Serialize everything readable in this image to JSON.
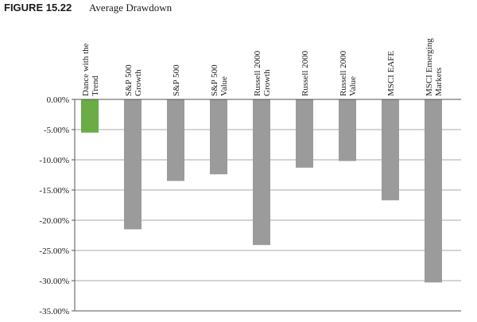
{
  "figure": {
    "number": "FIGURE 15.22",
    "title": "Average Drawdown"
  },
  "chart_data": {
    "type": "bar",
    "title": "Average Drawdown",
    "xlabel": "",
    "ylabel": "",
    "ylim": [
      -35,
      0
    ],
    "y_ticks": [
      0,
      -5,
      -10,
      -15,
      -20,
      -25,
      -30,
      -35
    ],
    "y_tick_labels": [
      "0.00%",
      "-5.00%",
      "-10.00%",
      "-15.00%",
      "-20.00%",
      "-25.00%",
      "-30.00%",
      "-35.00%"
    ],
    "grid": true,
    "categories": [
      [
        "Dance with the",
        "Trend"
      ],
      [
        "S&P 500",
        "Growth"
      ],
      [
        "S&P 500"
      ],
      [
        "S&P 500",
        "Value"
      ],
      [
        "Russell 2000",
        "Growth"
      ],
      [
        "Russell 2000"
      ],
      [
        "Russell 2000",
        "Value"
      ],
      [
        "MSCI EAFE"
      ],
      [
        "MSCI Emerging",
        "Markets"
      ]
    ],
    "values": [
      -5.5,
      -21.5,
      -13.5,
      -12.4,
      -24.1,
      -11.3,
      -10.2,
      -16.7,
      -30.3
    ],
    "colors": [
      "#6aac45",
      "#9b9b9b",
      "#9b9b9b",
      "#9b9b9b",
      "#9b9b9b",
      "#9b9b9b",
      "#9b9b9b",
      "#9b9b9b",
      "#9b9b9b"
    ]
  }
}
